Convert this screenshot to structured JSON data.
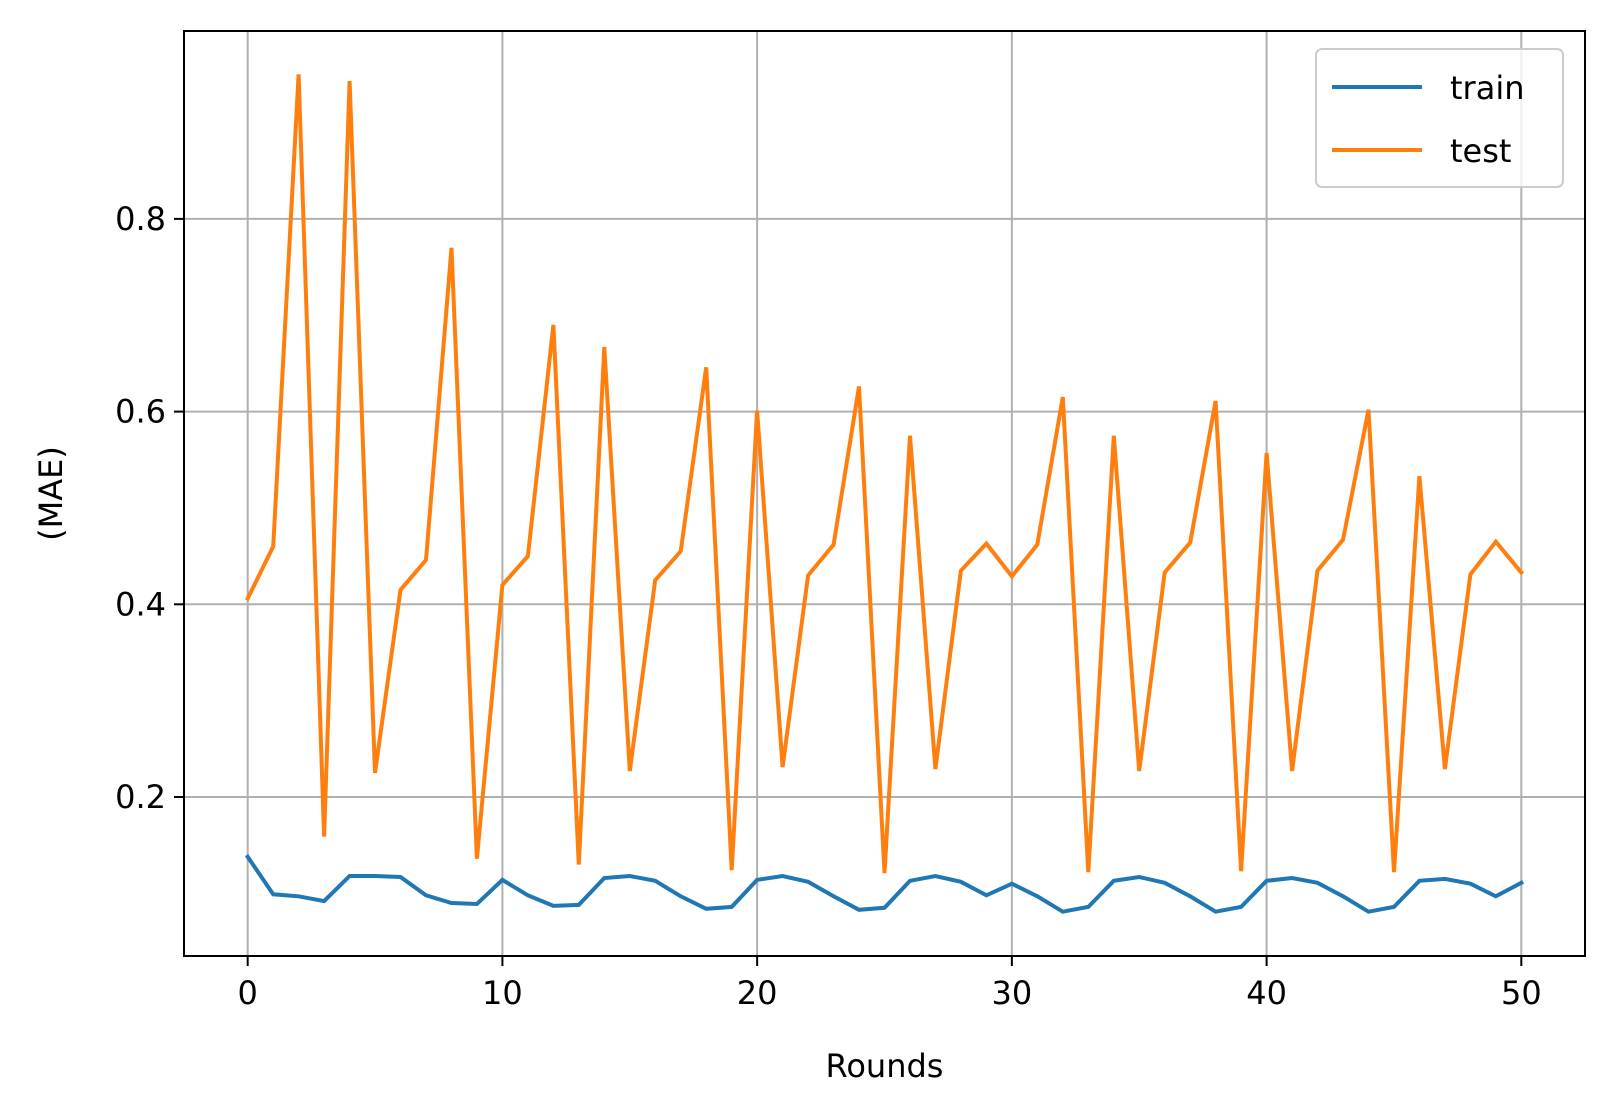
{
  "chart_data": {
    "type": "line",
    "title": "",
    "xlabel": "Rounds",
    "ylabel": "(MAE)",
    "xlim": [
      -2.5,
      52.5
    ],
    "ylim": [
      0.035,
      0.995
    ],
    "xticks": [
      0,
      10,
      20,
      30,
      40,
      50
    ],
    "xtick_labels": [
      "0",
      "10",
      "20",
      "30",
      "40",
      "50"
    ],
    "yticks": [
      0.2,
      0.4,
      0.6,
      0.8
    ],
    "ytick_labels": [
      "0.2",
      "0.4",
      "0.6",
      "0.8"
    ],
    "grid": true,
    "legend_position": "top-right",
    "series": [
      {
        "name": "train",
        "color": "#1f77b4",
        "x": [
          0,
          1,
          2,
          3,
          4,
          5,
          6,
          7,
          8,
          9,
          10,
          11,
          12,
          13,
          14,
          15,
          16,
          17,
          18,
          19,
          20,
          21,
          22,
          23,
          24,
          25,
          26,
          27,
          28,
          29,
          30,
          31,
          32,
          33,
          34,
          35,
          36,
          37,
          38,
          39,
          40,
          41,
          42,
          43,
          44,
          45,
          46,
          47,
          48,
          49,
          50
        ],
        "values": [
          0.138,
          0.099,
          0.097,
          0.092,
          0.118,
          0.118,
          0.117,
          0.098,
          0.09,
          0.089,
          0.114,
          0.098,
          0.087,
          0.088,
          0.116,
          0.118,
          0.113,
          0.097,
          0.084,
          0.086,
          0.114,
          0.118,
          0.112,
          0.097,
          0.083,
          0.085,
          0.113,
          0.118,
          0.112,
          0.098,
          0.11,
          0.097,
          0.081,
          0.086,
          0.113,
          0.117,
          0.111,
          0.097,
          0.081,
          0.086,
          0.113,
          0.116,
          0.111,
          0.097,
          0.081,
          0.086,
          0.113,
          0.115,
          0.11,
          0.097,
          0.111
        ]
      },
      {
        "name": "test",
        "color": "#ff7f0e",
        "x": [
          0,
          1,
          2,
          3,
          4,
          5,
          6,
          7,
          8,
          9,
          10,
          11,
          12,
          13,
          14,
          15,
          16,
          17,
          18,
          19,
          20,
          21,
          22,
          23,
          24,
          25,
          26,
          27,
          28,
          29,
          30,
          31,
          32,
          33,
          34,
          35,
          36,
          37,
          38,
          39,
          40,
          41,
          42,
          43,
          44,
          45,
          46,
          47,
          48,
          49,
          50
        ],
        "values": [
          0.406,
          0.46,
          0.95,
          0.159,
          0.943,
          0.225,
          0.415,
          0.446,
          0.77,
          0.136,
          0.42,
          0.45,
          0.69,
          0.13,
          0.667,
          0.227,
          0.425,
          0.455,
          0.646,
          0.124,
          0.601,
          0.231,
          0.43,
          0.462,
          0.626,
          0.121,
          0.575,
          0.229,
          0.435,
          0.463,
          0.429,
          0.462,
          0.615,
          0.122,
          0.575,
          0.227,
          0.433,
          0.464,
          0.611,
          0.123,
          0.557,
          0.227,
          0.435,
          0.467,
          0.602,
          0.122,
          0.533,
          0.229,
          0.431,
          0.465,
          0.433
        ]
      }
    ]
  }
}
